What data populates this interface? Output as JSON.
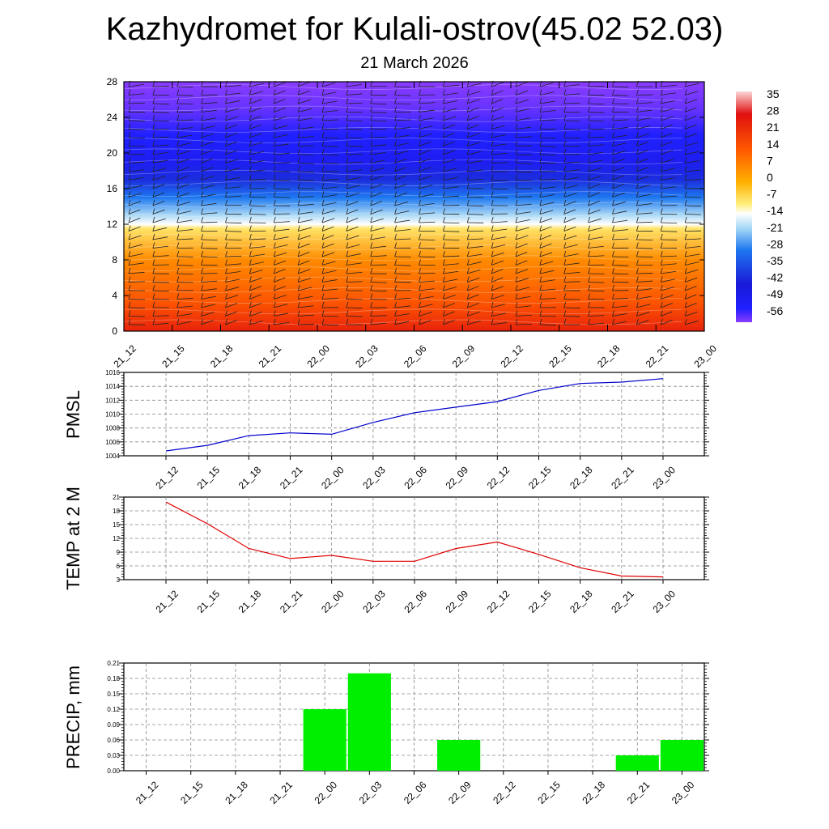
{
  "page": {
    "title": "Kazhydromet for Kulali-ostrov(45.02 52.03)",
    "subtitle": "21 March 2026"
  },
  "chart_data": [
    {
      "type": "heatmap",
      "name": "height-time-section",
      "x": [
        "21_12",
        "21_15",
        "21_18",
        "21_21",
        "22_00",
        "22_03",
        "22_06",
        "22_09",
        "22_12",
        "22_15",
        "22_18",
        "22_21",
        "23_00"
      ],
      "ylim": [
        0,
        28
      ],
      "yticks": [
        0,
        4,
        8,
        12,
        16,
        20,
        24,
        28
      ],
      "colorbar": {
        "labels": [
          "35",
          "28",
          "21",
          "14",
          "7",
          "0",
          "-7",
          "-14",
          "-21",
          "-28",
          "-35",
          "-42",
          "-49",
          "-56"
        ],
        "stops": [
          {
            "value": 40,
            "color": "#fbd6d6"
          },
          {
            "value": 30,
            "color": "#e01010"
          },
          {
            "value": 14,
            "color": "#ff5a00"
          },
          {
            "value": 0,
            "color": "#ffb000"
          },
          {
            "value": -10,
            "color": "#fff080"
          },
          {
            "value": -14,
            "color": "#ffffff"
          },
          {
            "value": -21,
            "color": "#9fd4f5"
          },
          {
            "value": -30,
            "color": "#1e78f0"
          },
          {
            "value": -45,
            "color": "#1a1ad8"
          },
          {
            "value": -56,
            "color": "#2020ff"
          },
          {
            "value": -62,
            "color": "#8a3cff"
          }
        ]
      },
      "profile": [
        {
          "level": 0,
          "value": 26
        },
        {
          "level": 3,
          "value": 16
        },
        {
          "level": 8,
          "value": 6
        },
        {
          "level": 11.5,
          "value": -8
        },
        {
          "level": 12,
          "value": -14
        },
        {
          "level": 13,
          "value": -20
        },
        {
          "level": 15,
          "value": -30
        },
        {
          "level": 17,
          "value": -42
        },
        {
          "level": 19,
          "value": -52
        },
        {
          "level": 22,
          "value": -56
        },
        {
          "level": 25,
          "value": -60
        },
        {
          "level": 28,
          "value": -62
        }
      ]
    },
    {
      "type": "line",
      "name": "pmsl",
      "ylabel": "PMSL",
      "categories": [
        "21_12",
        "21_15",
        "21_18",
        "21_21",
        "22_00",
        "22_03",
        "22_06",
        "22_09",
        "22_12",
        "22_15",
        "22_18",
        "22_21",
        "23_00"
      ],
      "values": [
        1004.7,
        1005.5,
        1006.9,
        1007.3,
        1007.1,
        1008.8,
        1010.2,
        1011.0,
        1011.8,
        1013.4,
        1014.4,
        1014.6,
        1015.1
      ],
      "ylim": [
        1004,
        1016
      ],
      "yticks": [
        "1004",
        "1006",
        "1008",
        "1010",
        "1012",
        "1014",
        "1016"
      ],
      "color": "#0000cc"
    },
    {
      "type": "line",
      "name": "temp-2m",
      "ylabel": "TEMP at 2 M",
      "categories": [
        "21_12",
        "21_15",
        "21_18",
        "21_21",
        "22_00",
        "22_03",
        "22_06",
        "22_09",
        "22_12",
        "22_15",
        "22_18",
        "22_21",
        "23_00"
      ],
      "values": [
        19.9,
        15.2,
        9.8,
        7.6,
        8.3,
        7.0,
        7.0,
        9.8,
        11.2,
        8.5,
        5.6,
        3.8,
        3.6
      ],
      "ylim": [
        3,
        21
      ],
      "yticks": [
        "3",
        "6",
        "9",
        "12",
        "15",
        "18",
        "21"
      ],
      "color": "#e00000"
    },
    {
      "type": "bar",
      "name": "precip",
      "ylabel": "PRECIP, mm",
      "categories": [
        "21_12",
        "21_15",
        "21_18",
        "21_21",
        "22_00",
        "22_03",
        "22_06",
        "22_09",
        "22_12",
        "22_15",
        "22_18",
        "22_21",
        "23_00"
      ],
      "values": [
        0,
        0,
        0,
        0,
        0.12,
        0.19,
        0,
        0.06,
        0,
        0,
        0,
        0.03,
        0.06
      ],
      "ylim": [
        0,
        0.21
      ],
      "yticks": [
        "0.00",
        "0.03",
        "0.06",
        "0.09",
        "0.12",
        "0.15",
        "0.18",
        "0.21"
      ],
      "color": "#00ee00"
    }
  ]
}
